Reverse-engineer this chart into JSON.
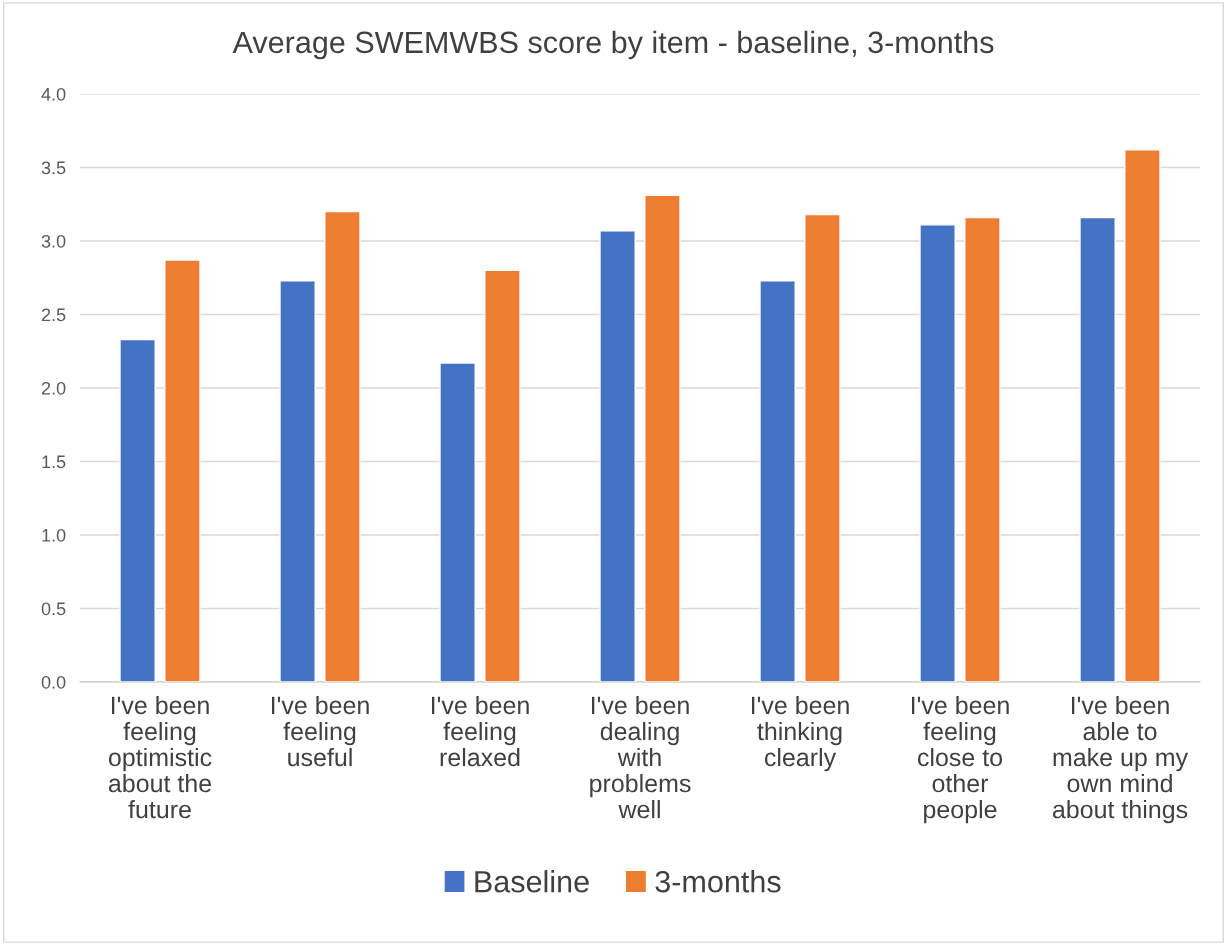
{
  "chart_data": {
    "type": "bar",
    "title": "Average SWEMWBS score by item - baseline, 3-months",
    "categories": [
      "I've been\nfeeling\noptimistic\nabout the\nfuture",
      "I've been\nfeeling\nuseful",
      "I've been\nfeeling\nrelaxed",
      "I've been\ndealing\nwith\nproblems\nwell",
      "I've been\nthinking\nclearly",
      "I've been\nfeeling\nclose to\nother\npeople",
      "I've been\nable to\nmake up my\nown mind\nabout things"
    ],
    "series": [
      {
        "name": "Baseline",
        "color": "#4472c4",
        "values": [
          2.33,
          2.73,
          2.17,
          3.07,
          2.73,
          3.11,
          3.16
        ]
      },
      {
        "name": "3-months",
        "color": "#ed7d31",
        "values": [
          2.87,
          3.2,
          2.8,
          3.31,
          3.18,
          3.16,
          3.62
        ]
      }
    ],
    "ylim": [
      0,
      4
    ],
    "yticks": [
      {
        "value": 0,
        "label": "0.0"
      },
      {
        "value": 0.5,
        "label": "0.5"
      },
      {
        "value": 1,
        "label": "1.0"
      },
      {
        "value": 1.5,
        "label": "1.5"
      },
      {
        "value": 2,
        "label": "2.0"
      },
      {
        "value": 2.5,
        "label": "2.5"
      },
      {
        "value": 3,
        "label": "3.0"
      },
      {
        "value": 3.5,
        "label": "3.5"
      },
      {
        "value": 4,
        "label": "4.0"
      }
    ],
    "grid": "y",
    "legend": "bottom"
  }
}
